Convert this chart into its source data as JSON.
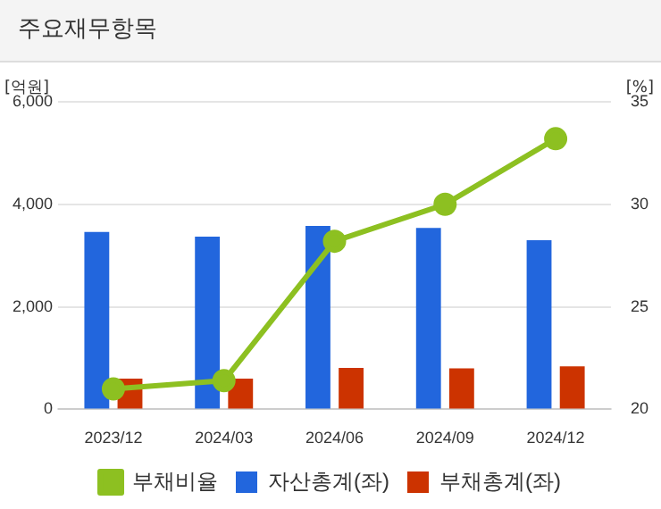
{
  "chart_data": {
    "type": "bar",
    "title": "주요재무항목",
    "ylabel": "[억원]",
    "y2label": "[%]",
    "categories": [
      "2023/12",
      "2024/03",
      "2024/06",
      "2024/09",
      "2024/12"
    ],
    "series": [
      {
        "name": "자산총계(좌)",
        "color": "#2266dd",
        "values": [
          3460,
          3370,
          3580,
          3540,
          3300
        ]
      },
      {
        "name": "부채총계(좌)",
        "color": "#cc3300",
        "values": [
          600,
          600,
          810,
          800,
          840
        ]
      },
      {
        "name": "부채비율",
        "type": "line",
        "axis": "y2",
        "color": "#8dc021",
        "marker": "circle",
        "values": [
          21.0,
          21.4,
          28.2,
          30.0,
          33.2
        ]
      }
    ],
    "ylim": [
      0,
      6000
    ],
    "yticks": [
      {
        "value": 0,
        "label": "0"
      },
      {
        "value": 2000,
        "label": "2,000"
      },
      {
        "value": 4000,
        "label": "4,000"
      },
      {
        "value": 6000,
        "label": "6,000"
      }
    ],
    "y2lim": [
      20,
      35
    ],
    "y2ticks": [
      20,
      25,
      30,
      35
    ],
    "grid": "y",
    "legend": "bottom"
  }
}
